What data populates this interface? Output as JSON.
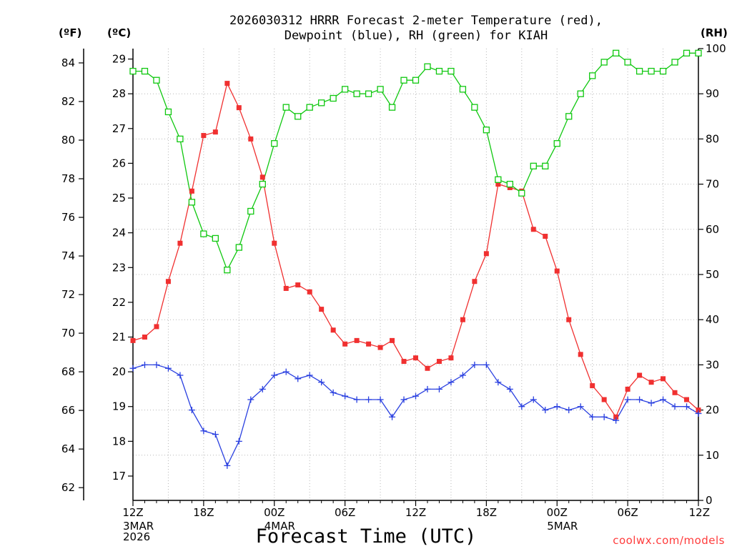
{
  "title": {
    "line1": "2026030312 HRRR Forecast 2-meter Temperature (red),",
    "line2": "Dewpoint (blue), RH (green) for KIAH"
  },
  "units": {
    "left_outer": "(ºF)",
    "left_inner": "(ºC)",
    "right": "(RH)"
  },
  "xlabel": "Forecast Time (UTC)",
  "source": "coolwx.com/models",
  "colors": {
    "temperature": "#f03030",
    "dewpoint": "#2a40e0",
    "rh": "#10c810",
    "grid": "#b8b8b8"
  },
  "chart_data": {
    "type": "line",
    "x_unit": "forecast hour from 2026-03-03 12Z",
    "x": [
      0,
      1,
      2,
      3,
      4,
      5,
      6,
      7,
      8,
      9,
      10,
      11,
      12,
      13,
      14,
      15,
      16,
      17,
      18,
      19,
      20,
      21,
      22,
      23,
      24,
      25,
      26,
      27,
      28,
      29,
      30,
      31,
      32,
      33,
      34,
      35,
      36,
      37,
      38,
      39,
      40,
      41,
      42,
      43,
      44,
      45,
      46,
      47,
      48
    ],
    "x_ticks": [
      {
        "x": 0,
        "label": "12Z",
        "date": [
          "3MAR",
          "2026"
        ]
      },
      {
        "x": 6,
        "label": "18Z",
        "date": []
      },
      {
        "x": 12,
        "label": "00Z",
        "date": [
          "4MAR"
        ]
      },
      {
        "x": 18,
        "label": "06Z",
        "date": []
      },
      {
        "x": 24,
        "label": "12Z",
        "date": []
      },
      {
        "x": 30,
        "label": "18Z",
        "date": []
      },
      {
        "x": 36,
        "label": "00Z",
        "date": [
          "5MAR"
        ]
      },
      {
        "x": 42,
        "label": "06Z",
        "date": []
      },
      {
        "x": 48,
        "label": "12Z",
        "date": []
      }
    ],
    "y_celsius": {
      "range": [
        16.3,
        29.3
      ],
      "ticks": [
        17,
        18,
        19,
        20,
        21,
        22,
        23,
        24,
        25,
        26,
        27,
        28,
        29
      ]
    },
    "y_fahrenheit": {
      "ticks": [
        62,
        64,
        66,
        68,
        70,
        72,
        74,
        76,
        78,
        80,
        82,
        84
      ]
    },
    "y_rh": {
      "range": [
        0,
        100
      ],
      "ticks": [
        0,
        10,
        20,
        30,
        40,
        50,
        60,
        70,
        80,
        90,
        100
      ]
    },
    "grid": true,
    "series": [
      {
        "name": "Temperature",
        "key": "temperature",
        "axis": "celsius",
        "marker": "filled-square",
        "values": [
          20.9,
          21.0,
          21.3,
          22.6,
          23.7,
          25.2,
          26.8,
          26.9,
          28.3,
          27.6,
          26.7,
          25.6,
          23.7,
          22.4,
          22.5,
          22.3,
          21.8,
          21.2,
          20.8,
          20.9,
          20.8,
          20.7,
          20.9,
          20.3,
          20.4,
          20.1,
          20.3,
          20.4,
          21.5,
          22.6,
          23.4,
          25.4,
          25.3,
          25.2,
          24.1,
          23.9,
          22.9,
          21.5,
          20.5,
          19.6,
          19.2,
          18.7,
          19.5,
          19.9,
          19.7,
          19.8,
          19.4,
          19.2,
          18.9
        ]
      },
      {
        "name": "Dewpoint",
        "key": "dewpoint",
        "axis": "celsius",
        "marker": "plus",
        "values": [
          20.1,
          20.2,
          20.2,
          20.1,
          19.9,
          18.9,
          18.3,
          18.2,
          17.3,
          18.0,
          19.2,
          19.5,
          19.9,
          20.0,
          19.8,
          19.9,
          19.7,
          19.4,
          19.3,
          19.2,
          19.2,
          19.2,
          18.7,
          19.2,
          19.3,
          19.5,
          19.5,
          19.7,
          19.9,
          20.2,
          20.2,
          19.7,
          19.5,
          19.0,
          19.2,
          18.9,
          19.0,
          18.9,
          19.0,
          18.7,
          18.7,
          18.6,
          19.2,
          19.2,
          19.1,
          19.2,
          19.0,
          19.0,
          18.8
        ]
      },
      {
        "name": "RH",
        "key": "rh",
        "axis": "rh",
        "marker": "open-square",
        "values": [
          95,
          95,
          93,
          86,
          80,
          66,
          59,
          58,
          51,
          56,
          64,
          70,
          79,
          87,
          85,
          87,
          88,
          89,
          91,
          90,
          90,
          91,
          87,
          93,
          93,
          96,
          95,
          95,
          91,
          87,
          82,
          71,
          70,
          68,
          74,
          74,
          79,
          85,
          90,
          94,
          97,
          99,
          97,
          95,
          95,
          95,
          97,
          99,
          99
        ]
      }
    ]
  }
}
